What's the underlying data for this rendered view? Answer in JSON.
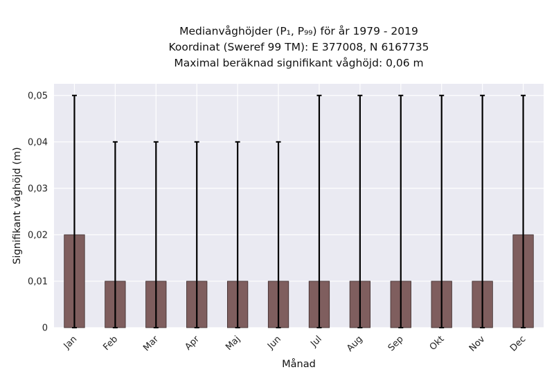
{
  "title": {
    "line1": "Medianvåghöjder (P₁, P₉₉) för år 1979 - 2019",
    "line2": "Koordinat (Sweref 99 TM): E 377008, N 6167735",
    "line3": "Maximal beräknad signifikant våghöjd: 0,06 m"
  },
  "colors": {
    "bar": "#7f5e5e",
    "bar_edge": "#3a2a2a",
    "plot_bg": "#eaeaf2",
    "grid": "#ffffff",
    "error_bar": "#000000"
  },
  "chart_data": {
    "type": "bar",
    "categories": [
      "Jan",
      "Feb",
      "Mar",
      "Apr",
      "Maj",
      "Jun",
      "Jul",
      "Aug",
      "Sep",
      "Okt",
      "Nov",
      "Dec"
    ],
    "values": [
      0.02,
      0.01,
      0.01,
      0.01,
      0.01,
      0.01,
      0.01,
      0.01,
      0.01,
      0.01,
      0.01,
      0.02
    ],
    "error_low": [
      0,
      0,
      0,
      0,
      0,
      0,
      0,
      0,
      0,
      0,
      0,
      0
    ],
    "error_high": [
      0.05,
      0.04,
      0.04,
      0.04,
      0.04,
      0.04,
      0.05,
      0.05,
      0.05,
      0.05,
      0.05,
      0.05
    ],
    "xlabel": "Månad",
    "ylabel": "Signifikant våghöjd (m)",
    "ylim": [
      0,
      0.0525
    ],
    "yticks": [
      0,
      0.01,
      0.02,
      0.03,
      0.04,
      0.05
    ],
    "ytick_labels": [
      "0",
      "0,01",
      "0,02",
      "0,03",
      "0,04",
      "0,05"
    ],
    "grid": true,
    "legend": "none"
  }
}
